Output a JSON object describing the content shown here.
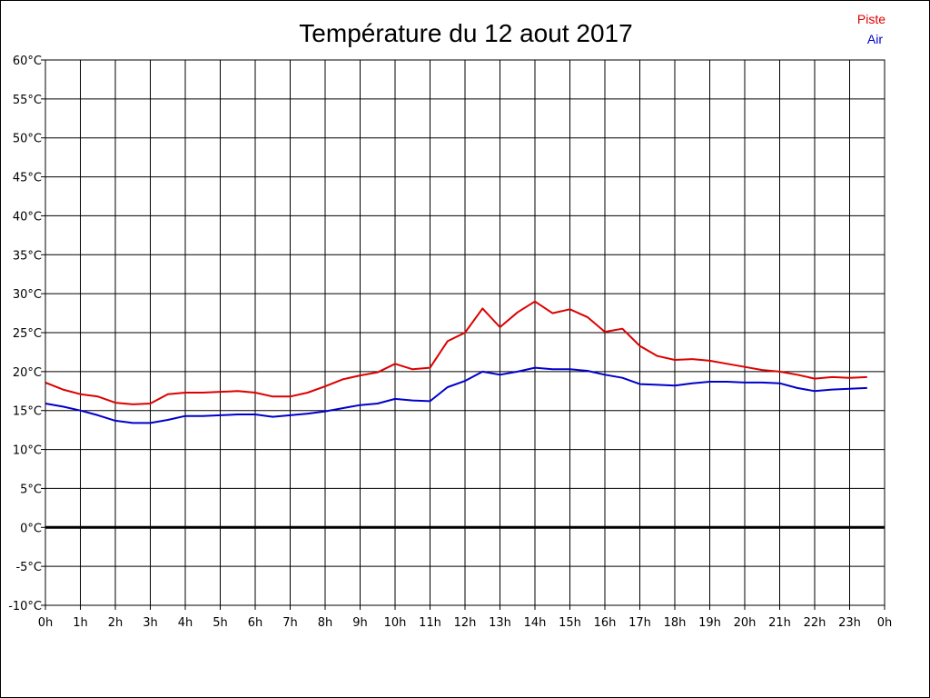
{
  "chart_data": {
    "type": "line",
    "title": "Température du 12 aout 2017",
    "legend": [
      {
        "name": "Piste",
        "color": "#dd0000"
      },
      {
        "name": "Air",
        "color": "#0000cc"
      }
    ],
    "legend_position": "top-right",
    "grid": true,
    "ylim": [
      -10,
      60
    ],
    "y_ticks": [
      "-10°C",
      "-5°C",
      "0°C",
      "5°C",
      "10°C",
      "15°C",
      "20°C",
      "25°C",
      "30°C",
      "35°C",
      "40°C",
      "45°C",
      "50°C",
      "55°C",
      "60°C"
    ],
    "x_ticks": [
      "0h",
      "1h",
      "2h",
      "3h",
      "4h",
      "5h",
      "6h",
      "7h",
      "8h",
      "9h",
      "10h",
      "11h",
      "12h",
      "13h",
      "14h",
      "15h",
      "16h",
      "17h",
      "18h",
      "19h",
      "20h",
      "21h",
      "22h",
      "23h",
      "0h"
    ],
    "x": [
      0,
      0.5,
      1,
      1.5,
      2,
      2.5,
      3,
      3.5,
      4,
      4.5,
      5,
      5.5,
      6,
      6.5,
      7,
      7.5,
      8,
      8.5,
      9,
      9.5,
      10,
      10.5,
      11,
      11.5,
      12,
      12.5,
      13,
      13.5,
      14,
      14.5,
      15,
      15.5,
      16,
      16.5,
      17,
      17.5,
      18,
      18.5,
      19,
      19.5,
      20,
      20.5,
      21,
      21.5,
      22,
      22.5,
      23,
      23.5
    ],
    "series": [
      {
        "name": "Piste",
        "color": "#dd0000",
        "values": [
          18.6,
          17.7,
          17.1,
          16.8,
          16.0,
          15.8,
          15.9,
          17.1,
          17.3,
          17.3,
          17.4,
          17.5,
          17.3,
          16.8,
          16.8,
          17.3,
          18.1,
          19.0,
          19.5,
          19.9,
          21.0,
          20.3,
          20.5,
          23.9,
          25.0,
          28.1,
          25.7,
          27.6,
          29.0,
          27.5,
          28.0,
          27.0,
          25.1,
          25.5,
          23.3,
          22.0,
          21.5,
          21.6,
          21.4,
          21.0,
          20.6,
          20.2,
          20.0,
          19.6,
          19.1,
          19.3,
          19.2,
          19.3
        ]
      },
      {
        "name": "Air",
        "color": "#0000cc",
        "values": [
          15.9,
          15.5,
          15.0,
          14.4,
          13.7,
          13.4,
          13.4,
          13.8,
          14.3,
          14.3,
          14.4,
          14.5,
          14.5,
          14.2,
          14.4,
          14.6,
          14.9,
          15.3,
          15.7,
          15.9,
          16.5,
          16.3,
          16.2,
          18.0,
          18.8,
          20.0,
          19.6,
          20.0,
          20.5,
          20.3,
          20.3,
          20.1,
          19.6,
          19.2,
          18.4,
          18.3,
          18.2,
          18.5,
          18.7,
          18.7,
          18.6,
          18.6,
          18.5,
          17.9,
          17.5,
          17.7,
          17.8,
          17.9
        ]
      }
    ],
    "zero_line": true
  }
}
